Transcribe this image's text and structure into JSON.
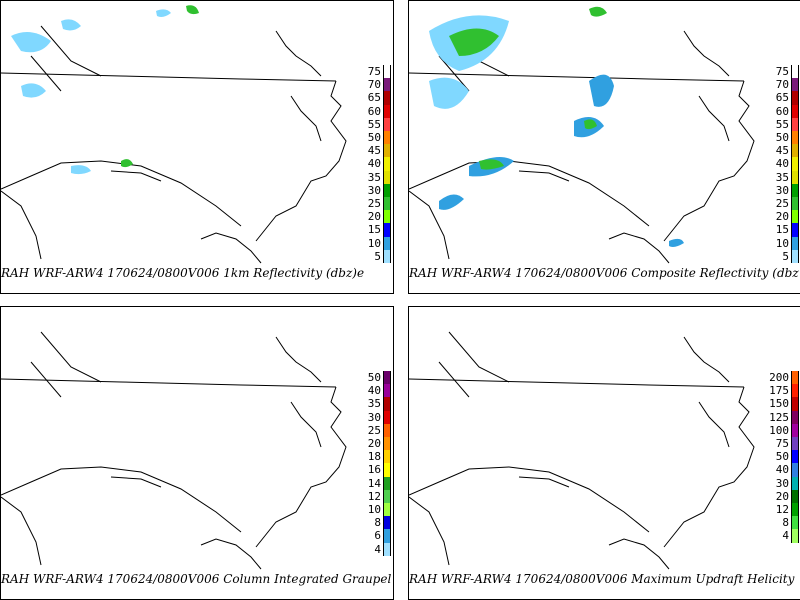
{
  "panels": [
    {
      "caption": "RAH WRF-ARW4 170624/0800V006  1km Reflectivity (dbz)e",
      "scale": [
        "75",
        "70",
        "65",
        "60",
        "55",
        "50",
        "45",
        "40",
        "35",
        "30",
        "25",
        "20",
        "15",
        "10",
        "5"
      ],
      "colors": [
        "#ffffff",
        "#7a1a7a",
        "#b00000",
        "#e00000",
        "#ff4040",
        "#ff8000",
        "#e0b000",
        "#f0f000",
        "#e0e000",
        "#00a000",
        "#30c030",
        "#80ff00",
        "#0000ff",
        "#30a0e0",
        "#a0e0ff"
      ]
    },
    {
      "caption": "RAH WRF-ARW4 170624/0800V006  Composite Reflectivity (dbz",
      "scale": [
        "75",
        "70",
        "65",
        "60",
        "55",
        "50",
        "45",
        "40",
        "35",
        "30",
        "25",
        "20",
        "15",
        "10",
        "5"
      ],
      "colors": [
        "#ffffff",
        "#7a1a7a",
        "#b00000",
        "#e00000",
        "#ff4040",
        "#ff8000",
        "#e0b000",
        "#f0f000",
        "#e0e000",
        "#00a000",
        "#30c030",
        "#80ff00",
        "#0000ff",
        "#30a0e0",
        "#a0e0ff"
      ]
    },
    {
      "caption": "RAH WRF-ARW4 170624/0800V006  Column Integrated Graupel",
      "scale": [
        "50",
        "40",
        "35",
        "30",
        "25",
        "20",
        "18",
        "16",
        "14",
        "12",
        "10",
        "8",
        "6",
        "4"
      ],
      "colors": [
        "#6a006a",
        "#9a009a",
        "#b00000",
        "#e00000",
        "#ff6000",
        "#ff9000",
        "#ffd000",
        "#ffff00",
        "#20a020",
        "#50d050",
        "#a0ff40",
        "#0000e0",
        "#30a0e0",
        "#a0e0ff"
      ]
    },
    {
      "caption": "RAH WRF-ARW4 170624/0800V006  Maximum Updraft Helicity",
      "scale": [
        "200",
        "175",
        "150",
        "125",
        "100",
        "75",
        "50",
        "40",
        "30",
        "20",
        "12",
        "8",
        "4"
      ],
      "colors": [
        "#ff6000",
        "#ff2000",
        "#c00000",
        "#800060",
        "#a000a0",
        "#7040c0",
        "#0000ff",
        "#3080e0",
        "#00b0b0",
        "#007000",
        "#00a000",
        "#40e040",
        "#a0ff60"
      ]
    }
  ]
}
